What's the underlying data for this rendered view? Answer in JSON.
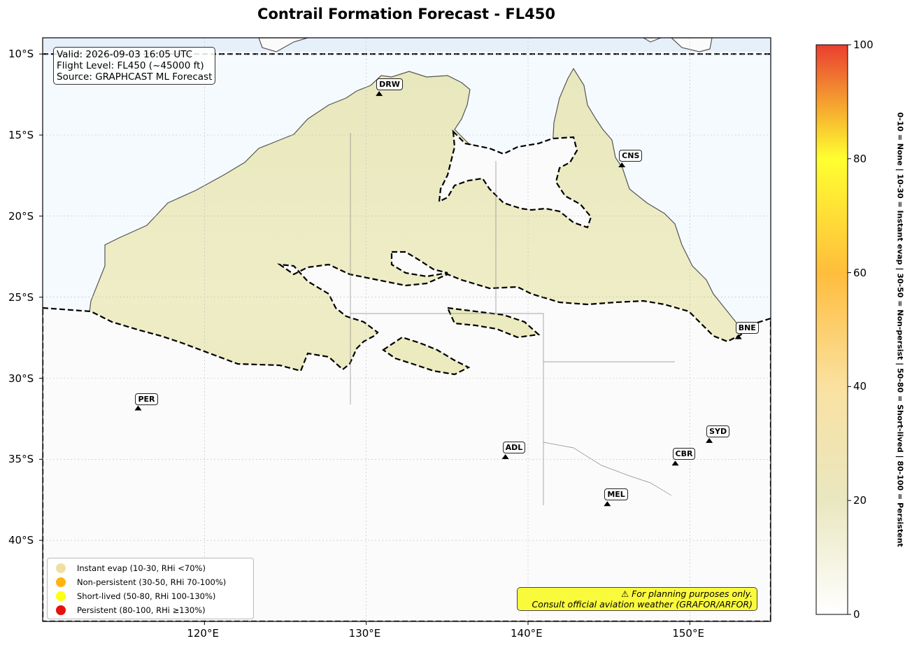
{
  "title": "Contrail Formation Forecast - FL450",
  "info": {
    "valid": "Valid: 2026-09-03 16:05 UTC",
    "flight_level": "Flight Level: FL450 (~45000 ft)",
    "source": "Source: GRAPHCAST ML Forecast"
  },
  "map": {
    "lon_range": [
      110,
      155
    ],
    "lat_range": [
      -45,
      -9
    ],
    "lat_ticks": [
      "10°S",
      "15°S",
      "20°S",
      "25°S",
      "30°S",
      "35°S",
      "40°S"
    ],
    "lon_ticks": [
      "120°E",
      "130°E",
      "140°E",
      "150°E"
    ],
    "persistent_threshold_lat": -10,
    "colors": {
      "ocean": "#f5faff",
      "land_low": "#fbfbfb",
      "land_high": "#ebebbf",
      "coast": "#555555",
      "contour": "#000000"
    }
  },
  "cities": [
    {
      "code": "DRW",
      "lon": 130.8,
      "lat": -12.5
    },
    {
      "code": "CNS",
      "lon": 145.8,
      "lat": -16.9
    },
    {
      "code": "PER",
      "lon": 115.9,
      "lat": -31.9
    },
    {
      "code": "ADL",
      "lon": 138.6,
      "lat": -34.9
    },
    {
      "code": "SYD",
      "lon": 151.2,
      "lat": -33.9
    },
    {
      "code": "CBR",
      "lon": 149.1,
      "lat": -35.3
    },
    {
      "code": "BNE",
      "lon": 153.0,
      "lat": -27.5
    },
    {
      "code": "MEL",
      "lon": 144.9,
      "lat": -37.8
    }
  ],
  "legend": [
    {
      "label": "Instant evap (10-30, RHi <70%)",
      "color": "#f0e0a0"
    },
    {
      "label": "Non-persistent (30-50, RHi 70-100%)",
      "color": "#ffb310"
    },
    {
      "label": "Short-lived (50-80, RHi 100-130%)",
      "color": "#ffff10"
    },
    {
      "label": "Persistent (80-100, RHi ≥130%)",
      "color": "#e81010"
    }
  ],
  "disclaimer": {
    "line1": "⚠ For planning purposes only.",
    "line2": "Consult official aviation weather (GRAFOR/ARFOR)"
  },
  "colorbar": {
    "ticks": [
      "0",
      "20",
      "40",
      "60",
      "80",
      "100"
    ],
    "min": 0,
    "max": 100,
    "stops": [
      {
        "v": 0,
        "c": "#ffffff"
      },
      {
        "v": 20,
        "c": "#e9e7c0"
      },
      {
        "v": 40,
        "c": "#fae1a1"
      },
      {
        "v": 60,
        "c": "#ffbd3c"
      },
      {
        "v": 80,
        "c": "#ffff30"
      },
      {
        "v": 100,
        "c": "#ea3e30"
      }
    ],
    "label": "0-10 = None  |  10-30 = Instant evap  |  30-50 = Non-persist  |  50-80 = Short-lived  |  80-100 = Persistent"
  }
}
